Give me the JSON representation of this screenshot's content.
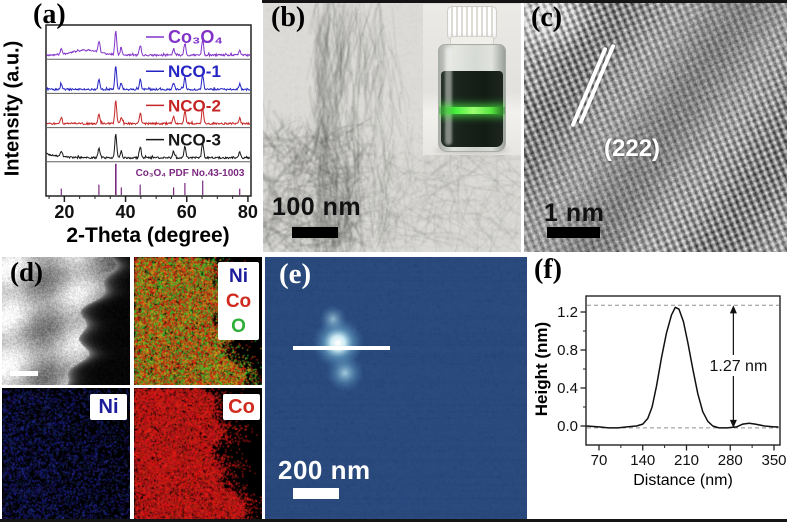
{
  "figure": {
    "panels": {
      "a": {
        "letter": "(a)"
      },
      "b": {
        "letter": "(b)",
        "scale_bar": "100 nm"
      },
      "c": {
        "letter": "(c)",
        "scale_bar": "1 nm",
        "lattice_plane": "(222)"
      },
      "d": {
        "letter": "(d)",
        "combined_map_legend": {
          "items": [
            {
              "label": "Ni",
              "color": "#1c1c9c"
            },
            {
              "label": "Co",
              "color": "#d02a1e"
            },
            {
              "label": "O",
              "color": "#2fae3a"
            }
          ]
        },
        "ni_map_label": {
          "label": "Ni",
          "color": "#1c1c9c"
        },
        "co_map_label": {
          "label": "Co",
          "color": "#d02a1e"
        }
      },
      "e": {
        "letter": "(e)",
        "scale_bar": "200 nm",
        "background_color": "#2b4b7e"
      },
      "f": {
        "letter": "(f)"
      }
    }
  },
  "chart_data": [
    {
      "id": "xrd_patterns",
      "type": "line",
      "title": "",
      "xlabel": "2-Theta (degree)",
      "ylabel": "Intensity (a.u.)",
      "xlim": [
        14,
        81
      ],
      "xticks": [
        20,
        40,
        60,
        80
      ],
      "xticks_minor": [
        15,
        25,
        30,
        35,
        45,
        50,
        55,
        65,
        70,
        75
      ],
      "grid": false,
      "legend_position": "right-inside-each-row",
      "peak_positions_2theta": [
        19.0,
        31.3,
        36.8,
        38.6,
        44.8,
        55.7,
        59.4,
        65.2,
        77.3
      ],
      "peak_relative_intensities": [
        0.22,
        0.42,
        1.0,
        0.28,
        0.42,
        0.28,
        0.5,
        0.62,
        0.22
      ],
      "series": [
        {
          "label": "Co₃O₄",
          "color": "#8233c7",
          "style": "trace",
          "broad_hump": {
            "center": 27,
            "width": 4.5,
            "amp": 5
          }
        },
        {
          "label": "NCO-1",
          "color": "#2424c4",
          "style": "trace"
        },
        {
          "label": "NCO-2",
          "color": "#c62525",
          "style": "trace"
        },
        {
          "label": "NCO-3",
          "color": "#161616",
          "style": "trace",
          "start_slope": 4
        },
        {
          "label": "Co₃O₄ PDF No.43-1003",
          "color": "#7c2a80",
          "style": "sticks"
        }
      ]
    },
    {
      "id": "afm_height_profile",
      "type": "line",
      "title": "",
      "xlabel": "Distance (nm)",
      "ylabel": "Height (nm)",
      "xticks": [
        70,
        140,
        210,
        280,
        350
      ],
      "xticks_minor": [
        105,
        175,
        245,
        315
      ],
      "yticks": [
        0.0,
        0.4,
        0.8,
        1.2
      ],
      "ytick_labels": [
        "0.0",
        "0.4",
        "0.8",
        "1.2"
      ],
      "yticks_minor": [
        0.2,
        0.6,
        1.0
      ],
      "xlim": [
        49,
        358
      ],
      "ylim": [
        -0.2,
        1.37
      ],
      "grid": false,
      "dashed_levels": [
        1.27,
        -0.02
      ],
      "annotation": {
        "text": "1.27 nm",
        "arrow_x": 285,
        "peak_height_nm": 1.27
      },
      "x": [
        50,
        70,
        85,
        100,
        115,
        130,
        140,
        148,
        155,
        162,
        170,
        178,
        186,
        192,
        198,
        205,
        212,
        220,
        228,
        236,
        244,
        252,
        262,
        275,
        290,
        300,
        310,
        320,
        335,
        350,
        357
      ],
      "y": [
        0.0,
        -0.01,
        -0.02,
        -0.02,
        -0.01,
        0.0,
        0.02,
        0.08,
        0.2,
        0.42,
        0.72,
        0.98,
        1.17,
        1.25,
        1.23,
        1.1,
        0.88,
        0.6,
        0.34,
        0.15,
        0.05,
        0.0,
        -0.02,
        -0.02,
        -0.01,
        0.02,
        0.03,
        0.02,
        0.0,
        -0.01,
        -0.01
      ]
    }
  ]
}
